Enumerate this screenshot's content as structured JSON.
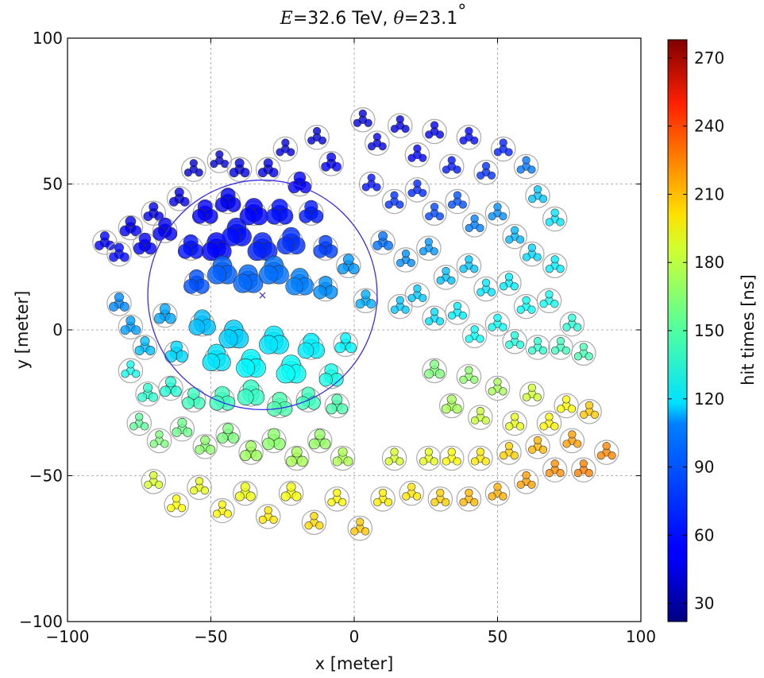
{
  "chart_data": {
    "type": "scatter",
    "title": {
      "energy_symbol": "E",
      "eq": "=",
      "energy_value": "32.6",
      "energy_unit": " TeV, ",
      "angle_symbol": "θ",
      "angle_value": "23.1",
      "degree": "°"
    },
    "xlabel": "x [meter]",
    "ylabel": "y [meter]",
    "colorbar_label": "hit times [ns]",
    "xlim": [
      -100,
      100
    ],
    "ylim": [
      -100,
      100
    ],
    "xticks": [
      -100,
      -50,
      0,
      50,
      100
    ],
    "yticks": [
      -100,
      -50,
      0,
      50,
      100
    ],
    "xtick_labels": [
      "−100",
      "−50",
      "0",
      "50",
      "100"
    ],
    "ytick_labels": [
      "−100",
      "−50",
      "0",
      "50",
      "100"
    ],
    "grid": true,
    "colorbar": {
      "range": [
        22,
        278
      ],
      "ticks": [
        30,
        60,
        90,
        120,
        150,
        180,
        210,
        240,
        270
      ],
      "colormap": "jet"
    },
    "shower_core": {
      "x": -32,
      "y": 12
    },
    "shower_radius_m": 40,
    "stations": [
      {
        "x": -87,
        "y": 30,
        "t": 54,
        "hit": 0.3
      },
      {
        "x": -82,
        "y": 26,
        "t": 56,
        "hit": 0.3
      },
      {
        "x": -78,
        "y": 35,
        "t": 50,
        "hit": 0.4
      },
      {
        "x": -73,
        "y": 29,
        "t": 52,
        "hit": 0.5
      },
      {
        "x": -70,
        "y": 40,
        "t": 48,
        "hit": 0.3
      },
      {
        "x": -66,
        "y": 34,
        "t": 50,
        "hit": 0.6
      },
      {
        "x": -61,
        "y": 45,
        "t": 46,
        "hit": 0.3
      },
      {
        "x": -57,
        "y": 28,
        "t": 58,
        "hit": 0.7
      },
      {
        "x": -56,
        "y": 55,
        "t": 42,
        "hit": 0.2
      },
      {
        "x": -52,
        "y": 40,
        "t": 52,
        "hit": 0.7
      },
      {
        "x": -48,
        "y": 28,
        "t": 55,
        "hit": 1.0
      },
      {
        "x": -47,
        "y": 58,
        "t": 42,
        "hit": 0.2
      },
      {
        "x": -44,
        "y": 44,
        "t": 50,
        "hit": 0.7
      },
      {
        "x": -41,
        "y": 33,
        "t": 57,
        "hit": 1.0
      },
      {
        "x": -40,
        "y": 55,
        "t": 45,
        "hit": 0.3
      },
      {
        "x": -35,
        "y": 40,
        "t": 55,
        "hit": 0.9
      },
      {
        "x": -32,
        "y": 28,
        "t": 62,
        "hit": 1.0
      },
      {
        "x": -30,
        "y": 55,
        "t": 46,
        "hit": 0.3
      },
      {
        "x": -26,
        "y": 40,
        "t": 58,
        "hit": 0.8
      },
      {
        "x": -24,
        "y": 62,
        "t": 44,
        "hit": 0.2
      },
      {
        "x": -22,
        "y": 30,
        "t": 66,
        "hit": 0.9
      },
      {
        "x": -19,
        "y": 50,
        "t": 52,
        "hit": 0.5
      },
      {
        "x": -15,
        "y": 40,
        "t": 60,
        "hit": 0.6
      },
      {
        "x": -13,
        "y": 66,
        "t": 44,
        "hit": 0.2
      },
      {
        "x": -10,
        "y": 28,
        "t": 70,
        "hit": 0.6
      },
      {
        "x": -8,
        "y": 57,
        "t": 52,
        "hit": 0.3
      },
      {
        "x": -46,
        "y": 20,
        "t": 78,
        "hit": 1.0
      },
      {
        "x": -37,
        "y": 17,
        "t": 80,
        "hit": 1.0
      },
      {
        "x": -28,
        "y": 20,
        "t": 82,
        "hit": 1.0
      },
      {
        "x": -19,
        "y": 16,
        "t": 86,
        "hit": 0.9
      },
      {
        "x": -10,
        "y": 14,
        "t": 90,
        "hit": 0.6
      },
      {
        "x": -55,
        "y": 16,
        "t": 74,
        "hit": 0.7
      },
      {
        "x": -2,
        "y": 22,
        "t": 92,
        "hit": 0.4
      },
      {
        "x": 4,
        "y": 10,
        "t": 98,
        "hit": 0.3
      },
      {
        "x": -82,
        "y": 9,
        "t": 88,
        "hit": 0.3
      },
      {
        "x": -78,
        "y": 1,
        "t": 94,
        "hit": 0.3
      },
      {
        "x": -73,
        "y": -6,
        "t": 102,
        "hit": 0.3
      },
      {
        "x": -66,
        "y": 5,
        "t": 96,
        "hit": 0.4
      },
      {
        "x": -62,
        "y": -8,
        "t": 108,
        "hit": 0.5
      },
      {
        "x": -53,
        "y": 2,
        "t": 102,
        "hit": 0.8
      },
      {
        "x": -48,
        "y": -10,
        "t": 112,
        "hit": 0.9
      },
      {
        "x": -42,
        "y": -2,
        "t": 106,
        "hit": 1.0
      },
      {
        "x": -36,
        "y": -12,
        "t": 116,
        "hit": 1.0
      },
      {
        "x": -28,
        "y": -4,
        "t": 112,
        "hit": 1.0
      },
      {
        "x": -22,
        "y": -14,
        "t": 120,
        "hit": 1.0
      },
      {
        "x": -15,
        "y": -6,
        "t": 114,
        "hit": 0.8
      },
      {
        "x": -8,
        "y": -16,
        "t": 124,
        "hit": 0.6
      },
      {
        "x": -3,
        "y": -5,
        "t": 116,
        "hit": 0.4
      },
      {
        "x": -78,
        "y": -14,
        "t": 122,
        "hit": 0.2
      },
      {
        "x": -72,
        "y": -22,
        "t": 130,
        "hit": 0.3
      },
      {
        "x": -64,
        "y": -20,
        "t": 128,
        "hit": 0.4
      },
      {
        "x": -56,
        "y": -24,
        "t": 134,
        "hit": 0.5
      },
      {
        "x": -46,
        "y": -24,
        "t": 134,
        "hit": 0.7
      },
      {
        "x": -36,
        "y": -22,
        "t": 132,
        "hit": 0.8
      },
      {
        "x": -26,
        "y": -26,
        "t": 138,
        "hit": 0.7
      },
      {
        "x": -16,
        "y": -24,
        "t": 134,
        "hit": 0.6
      },
      {
        "x": -6,
        "y": -26,
        "t": 138,
        "hit": 0.4
      },
      {
        "x": -75,
        "y": -32,
        "t": 142,
        "hit": 0.2
      },
      {
        "x": -68,
        "y": -38,
        "t": 150,
        "hit": 0.2
      },
      {
        "x": -60,
        "y": -34,
        "t": 146,
        "hit": 0.3
      },
      {
        "x": -52,
        "y": -40,
        "t": 154,
        "hit": 0.3
      },
      {
        "x": -44,
        "y": -36,
        "t": 150,
        "hit": 0.4
      },
      {
        "x": -36,
        "y": -42,
        "t": 158,
        "hit": 0.4
      },
      {
        "x": -28,
        "y": -38,
        "t": 154,
        "hit": 0.5
      },
      {
        "x": -20,
        "y": -44,
        "t": 160,
        "hit": 0.4
      },
      {
        "x": -12,
        "y": -38,
        "t": 156,
        "hit": 0.4
      },
      {
        "x": -4,
        "y": -44,
        "t": 162,
        "hit": 0.3
      },
      {
        "x": -70,
        "y": -52,
        "t": 172,
        "hit": 0.2
      },
      {
        "x": -62,
        "y": -60,
        "t": 182,
        "hit": 0.2
      },
      {
        "x": -54,
        "y": -54,
        "t": 176,
        "hit": 0.2
      },
      {
        "x": -46,
        "y": -62,
        "t": 184,
        "hit": 0.2
      },
      {
        "x": -38,
        "y": -56,
        "t": 178,
        "hit": 0.3
      },
      {
        "x": -30,
        "y": -64,
        "t": 188,
        "hit": 0.2
      },
      {
        "x": -22,
        "y": -56,
        "t": 180,
        "hit": 0.3
      },
      {
        "x": -14,
        "y": -66,
        "t": 192,
        "hit": 0.2
      },
      {
        "x": -6,
        "y": -58,
        "t": 184,
        "hit": 0.2
      },
      {
        "x": 2,
        "y": -68,
        "t": 196,
        "hit": 0.2
      },
      {
        "x": 10,
        "y": -58,
        "t": 186,
        "hit": 0.2
      },
      {
        "x": 14,
        "y": -44,
        "t": 172,
        "hit": 0.2
      },
      {
        "x": 20,
        "y": -56,
        "t": 188,
        "hit": 0.2
      },
      {
        "x": 26,
        "y": -44,
        "t": 176,
        "hit": 0.2
      },
      {
        "x": 30,
        "y": -58,
        "t": 194,
        "hit": 0.2
      },
      {
        "x": 34,
        "y": -44,
        "t": 182,
        "hit": 0.2
      },
      {
        "x": 40,
        "y": -58,
        "t": 200,
        "hit": 0.2
      },
      {
        "x": 44,
        "y": -44,
        "t": 188,
        "hit": 0.2
      },
      {
        "x": 50,
        "y": -56,
        "t": 202,
        "hit": 0.2
      },
      {
        "x": 54,
        "y": -42,
        "t": 194,
        "hit": 0.2
      },
      {
        "x": 60,
        "y": -52,
        "t": 206,
        "hit": 0.2
      },
      {
        "x": 64,
        "y": -40,
        "t": 200,
        "hit": 0.2
      },
      {
        "x": 70,
        "y": -48,
        "t": 210,
        "hit": 0.2
      },
      {
        "x": 76,
        "y": -38,
        "t": 206,
        "hit": 0.2
      },
      {
        "x": 80,
        "y": -48,
        "t": 214,
        "hit": 0.2
      },
      {
        "x": 88,
        "y": -42,
        "t": 212,
        "hit": 0.2
      },
      {
        "x": 28,
        "y": -14,
        "t": 150,
        "hit": 0.3
      },
      {
        "x": 34,
        "y": -26,
        "t": 160,
        "hit": 0.3
      },
      {
        "x": 40,
        "y": -16,
        "t": 154,
        "hit": 0.2
      },
      {
        "x": 44,
        "y": -30,
        "t": 168,
        "hit": 0.2
      },
      {
        "x": 50,
        "y": -20,
        "t": 160,
        "hit": 0.2
      },
      {
        "x": 56,
        "y": -32,
        "t": 176,
        "hit": 0.2
      },
      {
        "x": 62,
        "y": -22,
        "t": 170,
        "hit": 0.2
      },
      {
        "x": 68,
        "y": -32,
        "t": 184,
        "hit": 0.2
      },
      {
        "x": 74,
        "y": -26,
        "t": 182,
        "hit": 0.2
      },
      {
        "x": 82,
        "y": -28,
        "t": 196,
        "hit": 0.2
      },
      {
        "x": 3,
        "y": 72,
        "t": 44,
        "hit": 0.2
      },
      {
        "x": 8,
        "y": 64,
        "t": 48,
        "hit": 0.2
      },
      {
        "x": 16,
        "y": 70,
        "t": 46,
        "hit": 0.2
      },
      {
        "x": 22,
        "y": 60,
        "t": 54,
        "hit": 0.2
      },
      {
        "x": 28,
        "y": 68,
        "t": 50,
        "hit": 0.2
      },
      {
        "x": 34,
        "y": 56,
        "t": 60,
        "hit": 0.2
      },
      {
        "x": 40,
        "y": 66,
        "t": 56,
        "hit": 0.2
      },
      {
        "x": 46,
        "y": 54,
        "t": 66,
        "hit": 0.2
      },
      {
        "x": 52,
        "y": 62,
        "t": 62,
        "hit": 0.2
      },
      {
        "x": 60,
        "y": 56,
        "t": 84,
        "hit": 0.2
      },
      {
        "x": 64,
        "y": 46,
        "t": 104,
        "hit": 0.2
      },
      {
        "x": 70,
        "y": 38,
        "t": 112,
        "hit": 0.2
      },
      {
        "x": 6,
        "y": 50,
        "t": 58,
        "hit": 0.2
      },
      {
        "x": 14,
        "y": 44,
        "t": 66,
        "hit": 0.2
      },
      {
        "x": 22,
        "y": 48,
        "t": 64,
        "hit": 0.2
      },
      {
        "x": 28,
        "y": 40,
        "t": 72,
        "hit": 0.2
      },
      {
        "x": 36,
        "y": 44,
        "t": 74,
        "hit": 0.2
      },
      {
        "x": 42,
        "y": 36,
        "t": 86,
        "hit": 0.2
      },
      {
        "x": 50,
        "y": 40,
        "t": 90,
        "hit": 0.2
      },
      {
        "x": 56,
        "y": 32,
        "t": 100,
        "hit": 0.2
      },
      {
        "x": 62,
        "y": 26,
        "t": 108,
        "hit": 0.2
      },
      {
        "x": 70,
        "y": 22,
        "t": 114,
        "hit": 0.2
      },
      {
        "x": 10,
        "y": 30,
        "t": 82,
        "hit": 0.3
      },
      {
        "x": 18,
        "y": 24,
        "t": 90,
        "hit": 0.2
      },
      {
        "x": 26,
        "y": 28,
        "t": 92,
        "hit": 0.2
      },
      {
        "x": 32,
        "y": 18,
        "t": 102,
        "hit": 0.2
      },
      {
        "x": 40,
        "y": 22,
        "t": 104,
        "hit": 0.2
      },
      {
        "x": 46,
        "y": 14,
        "t": 112,
        "hit": 0.2
      },
      {
        "x": 54,
        "y": 16,
        "t": 114,
        "hit": 0.2
      },
      {
        "x": 60,
        "y": 8,
        "t": 120,
        "hit": 0.2
      },
      {
        "x": 68,
        "y": 10,
        "t": 122,
        "hit": 0.2
      },
      {
        "x": 76,
        "y": 2,
        "t": 128,
        "hit": 0.2
      },
      {
        "x": 16,
        "y": 8,
        "t": 104,
        "hit": 0.2
      },
      {
        "x": 22,
        "y": 12,
        "t": 104,
        "hit": 0.2
      },
      {
        "x": 28,
        "y": 4,
        "t": 110,
        "hit": 0.2
      },
      {
        "x": 36,
        "y": 6,
        "t": 114,
        "hit": 0.2
      },
      {
        "x": 42,
        "y": -2,
        "t": 120,
        "hit": 0.2
      },
      {
        "x": 50,
        "y": 2,
        "t": 120,
        "hit": 0.2
      },
      {
        "x": 56,
        "y": -4,
        "t": 126,
        "hit": 0.2
      },
      {
        "x": 64,
        "y": -6,
        "t": 130,
        "hit": 0.2
      },
      {
        "x": 72,
        "y": -6,
        "t": 134,
        "hit": 0.2
      },
      {
        "x": 80,
        "y": -8,
        "t": 136,
        "hit": 0.2
      }
    ]
  }
}
